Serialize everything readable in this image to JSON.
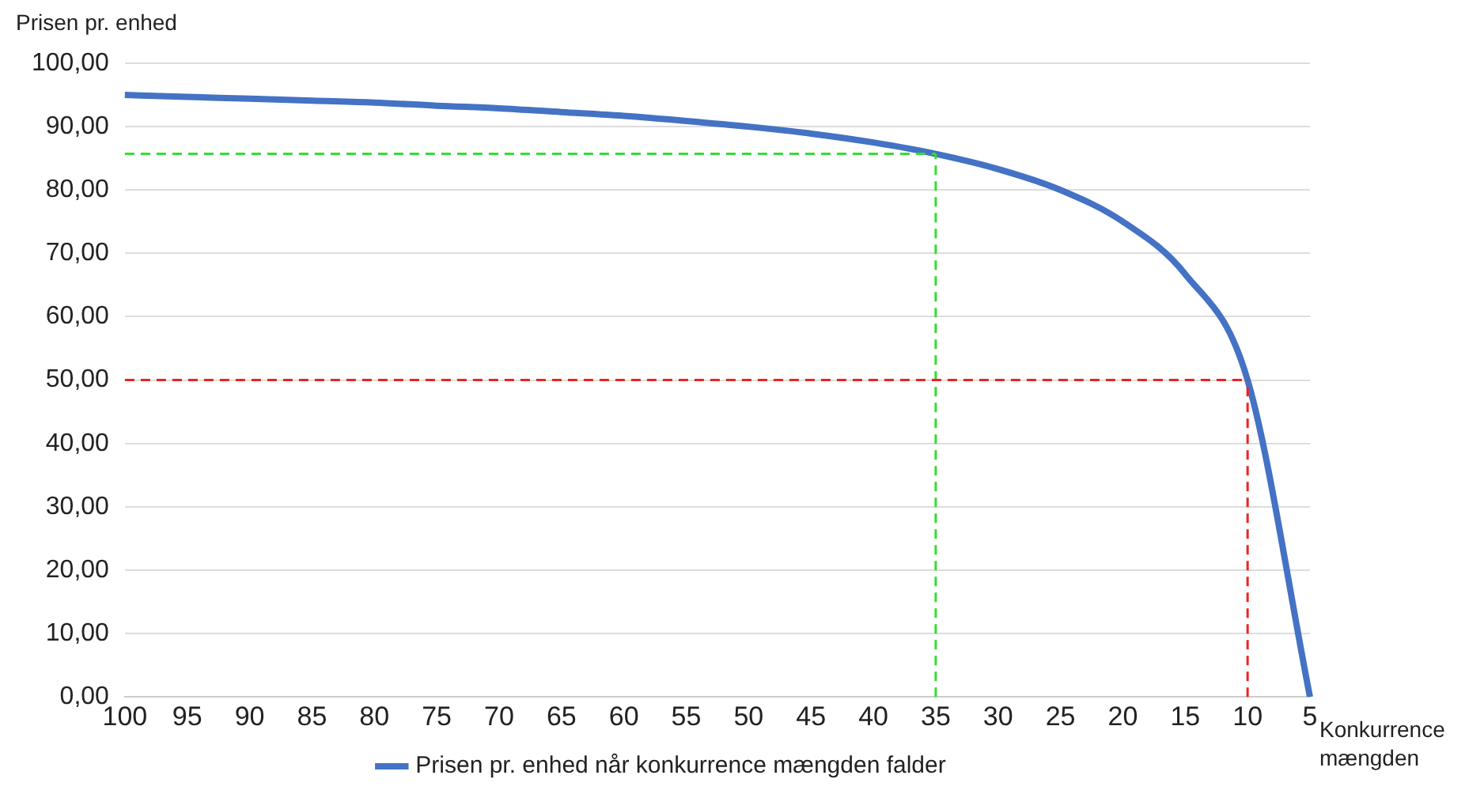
{
  "chart_data": {
    "type": "line",
    "ylabel": "Prisen pr. enhed",
    "xlabel": "Konkurrence mængden",
    "categories": [
      "100",
      "95",
      "90",
      "85",
      "80",
      "75",
      "70",
      "65",
      "60",
      "55",
      "50",
      "45",
      "40",
      "35",
      "30",
      "25",
      "20",
      "15",
      "10",
      "5"
    ],
    "series": [
      {
        "name": "Prisen pr. enhed når konkurrence mængden falder",
        "color": "#4472c4",
        "values": [
          95,
          94.7,
          94.4,
          94.1,
          93.8,
          93.3,
          92.9,
          92.3,
          91.7,
          90.9,
          90,
          88.9,
          87.5,
          85.7,
          83.3,
          80,
          75,
          66.7,
          50,
          0
        ]
      }
    ],
    "ylim": [
      0,
      100
    ],
    "yticks": [
      {
        "value": 0,
        "label": "0,00"
      },
      {
        "value": 10,
        "label": "10,00"
      },
      {
        "value": 20,
        "label": "20,00"
      },
      {
        "value": 30,
        "label": "30,00"
      },
      {
        "value": 40,
        "label": "40,00"
      },
      {
        "value": 50,
        "label": "50,00"
      },
      {
        "value": 60,
        "label": "60,00"
      },
      {
        "value": 70,
        "label": "70,00"
      },
      {
        "value": 80,
        "label": "80,00"
      },
      {
        "value": 90,
        "label": "90,00"
      },
      {
        "value": 100,
        "label": "100,00"
      }
    ],
    "ref_lines": [
      {
        "axis": "y",
        "value": 85.7,
        "color": "#33dd33",
        "line_style": "dashed"
      },
      {
        "axis": "x",
        "value": "35",
        "color": "#33dd33",
        "line_style": "dashed"
      },
      {
        "axis": "y",
        "value": 50,
        "color": "#ee2222",
        "line_style": "dashed"
      },
      {
        "axis": "x",
        "value": "10",
        "color": "#ee2222",
        "line_style": "dashed"
      }
    ],
    "grid": "y",
    "legend": "bottom",
    "marker": "none",
    "line_style": "solid"
  }
}
